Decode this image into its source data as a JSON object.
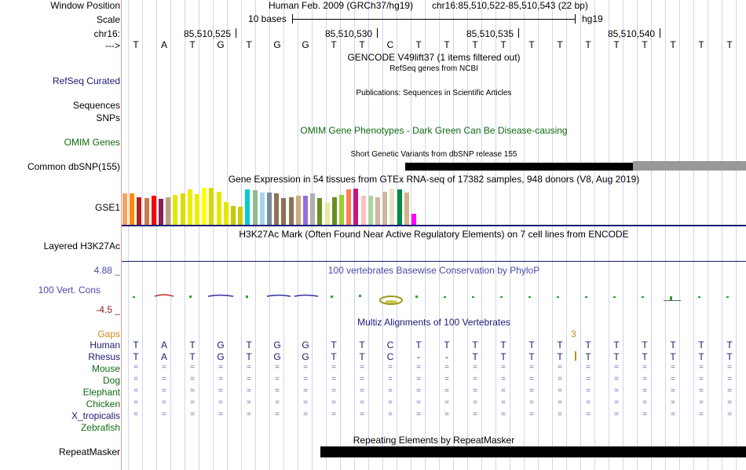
{
  "header": {
    "window_position_label": "Window Position",
    "scale_label": "Scale",
    "chrom_label": "chr16:",
    "strand_label": "--->",
    "assembly_text": "Human Feb. 2009 (GRCh37/hg19)",
    "position_text": "chr16:85,510,522-85,510,543 (22 bp)",
    "scale_text": "10 bases",
    "assembly_short": "hg19",
    "coords": [
      "85,510,525",
      "85,510,530",
      "85,510,535",
      "85,510,540"
    ]
  },
  "bases": [
    "T",
    "A",
    "T",
    "G",
    "T",
    "G",
    "G",
    "T",
    "T",
    "C",
    "T",
    "T",
    "T",
    "T",
    "T",
    "T",
    "T",
    "T",
    "T",
    "T",
    "T",
    "T"
  ],
  "tracks": {
    "gencode_title": "GENCODE V49lift37 (1 items filtered out)",
    "refseq_label": "RefSeq Curated",
    "refseq_title": "RefSeq genes from NCBI",
    "sequences_label": "Sequences",
    "snps_label": "SNPs",
    "pubs_title": "Publications: Sequences in Scientific Articles",
    "omim_title": "OMIM Gene Phenotypes - Dark Green Can Be Disease-causing",
    "omim_label": "OMIM Genes",
    "dbsnp_title": "Short Genetic Variants from dbSNP release 155",
    "dbsnp_label": "Common dbSNP(155)",
    "gtex_title": "Gene Expression in 54 tissues from GTEx RNA-seq of 17382 samples, 948 donors (V8, Aug 2019)",
    "gtex_label": "GSE1",
    "h3k27ac_title": "H3K27Ac Mark (Often Found Near Active Regulatory Elements) on 7 cell lines from ENCODE",
    "h3k27ac_label": "Layered H3K27Ac",
    "cons_max": "4.88 _",
    "cons_title": "100 vertebrates Basewise Conservation by PhyloP",
    "cons_label": "100 Vert. Cons",
    "cons_min": "-4.5 _",
    "multiz_title": "Multiz Alignments of 100 Vertebrates",
    "gaps_label": "Gaps",
    "gap_value": "3",
    "repeat_title": "Repeating Elements by RepeatMasker",
    "repeat_label": "RepeatMasker"
  },
  "gtex_colors": [
    "#f4a460",
    "#ff8c00",
    "#b22222",
    "#cc7a52",
    "#ff0000",
    "#8b2252",
    "#c0a080",
    "#e6e600",
    "#dcdc00",
    "#eeee00",
    "#eeee00",
    "#ffff00",
    "#d8d800",
    "#e6e600",
    "#e6e600",
    "#c8c800",
    "#cdcd00",
    "#00ced1",
    "#8fbc8f",
    "#a4d3ee",
    "#7a8a9a",
    "#8b7355",
    "#8b7355",
    "#8b7355",
    "#cdaa7d",
    "#9370db",
    "#b0b0b0",
    "#6b8e23",
    "#e9e9a0",
    "#6b8e23",
    "#9acd32",
    "#ff7f50",
    "#c71585",
    "#ffc1c1",
    "#aad5a5",
    "#cdb79e",
    "#cdb79e",
    "#eedfcc",
    "#008b45",
    "#d2b48c",
    "#ff00ff"
  ],
  "gtex_values": [
    0.85,
    0.85,
    0.75,
    0.72,
    0.78,
    0.7,
    0.75,
    0.8,
    0.85,
    0.95,
    0.82,
    1.0,
    1.0,
    0.9,
    0.62,
    0.5,
    0.48,
    0.95,
    0.93,
    0.88,
    0.88,
    0.85,
    0.72,
    0.75,
    0.78,
    0.78,
    0.85,
    0.72,
    0.6,
    0.75,
    0.8,
    0.95,
    0.98,
    0.78,
    0.78,
    0.75,
    0.9,
    0.97,
    0.95,
    0.88,
    0.3
  ],
  "species": [
    {
      "name": "Human",
      "row": [
        "T",
        "A",
        "T",
        "G",
        "T",
        "G",
        "G",
        "T",
        "T",
        "C",
        "T",
        "T",
        "T",
        "T",
        "T",
        "T",
        "T",
        "T",
        "T",
        "T",
        "T",
        "T"
      ]
    },
    {
      "name": "Rhesus",
      "row": [
        "T",
        "A",
        "T",
        "G",
        "T",
        "G",
        "G",
        "T",
        "T",
        "C",
        "-",
        "-",
        "T",
        "T",
        "T",
        "T",
        "T",
        "T",
        "T",
        "T",
        "T",
        "T"
      ]
    },
    {
      "name": "Mouse",
      "row": [
        "=",
        "=",
        "=",
        "=",
        "=",
        "=",
        "=",
        "=",
        "=",
        "=",
        "=",
        "=",
        "=",
        "=",
        "=",
        "=",
        "=",
        "=",
        "=",
        "=",
        "=",
        "="
      ]
    },
    {
      "name": "Dog",
      "row": [
        "=",
        "=",
        "=",
        "=",
        "=",
        "=",
        "=",
        "=",
        "=",
        "=",
        "=",
        "=",
        "=",
        "=",
        "=",
        "=",
        "=",
        "=",
        "=",
        "=",
        "=",
        "="
      ]
    },
    {
      "name": "Elephant",
      "row": [
        "=",
        "=",
        "=",
        "=",
        "=",
        "=",
        "=",
        "=",
        "=",
        "=",
        "=",
        "=",
        "=",
        "=",
        "=",
        "=",
        "=",
        "=",
        "=",
        "=",
        "=",
        "="
      ]
    },
    {
      "name": "Chicken",
      "row": [
        "=",
        "=",
        "=",
        "=",
        "=",
        "=",
        "=",
        "=",
        "=",
        "=",
        "=",
        "=",
        "=",
        "=",
        "=",
        "=",
        "=",
        "=",
        "=",
        "=",
        "=",
        "="
      ]
    },
    {
      "name": "X_tropicalis",
      "row": [
        "=",
        "=",
        "=",
        "=",
        "=",
        "=",
        "=",
        "=",
        "=",
        "=",
        "=",
        "=",
        "=",
        "=",
        "=",
        "=",
        "=",
        "=",
        "=",
        "=",
        "=",
        "="
      ]
    },
    {
      "name": "Zebrafish",
      "row": [
        "",
        "",
        "",
        "",
        "",
        "",
        "",
        "",
        "",
        "",
        "",
        "",
        "",
        "",
        "",
        "",
        "",
        "",
        "",
        "",
        "",
        ""
      ]
    }
  ]
}
